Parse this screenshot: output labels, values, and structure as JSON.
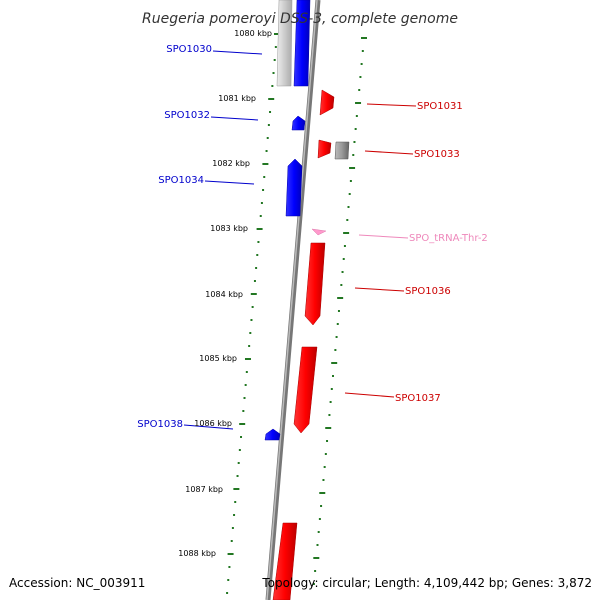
{
  "title": "Ruegeria pomeroyi DSS-3, complete genome",
  "footer": {
    "accession": "Accession: NC_003911",
    "topology": "Topology: circular; Length: 4,109,442 bp; Genes: 3,872"
  },
  "scale_labels": [
    "1080 kbp",
    "1081 kbp",
    "1082 kbp",
    "1083 kbp",
    "1084 kbp",
    "1085 kbp",
    "1086 kbp",
    "1087 kbp",
    "1088 kbp"
  ],
  "genes": [
    {
      "id": "SPO1030",
      "strand": "minus",
      "color": "#0000cc"
    },
    {
      "id": "SPO1031",
      "strand": "plus",
      "color": "#cc0000"
    },
    {
      "id": "SPO1032",
      "strand": "minus",
      "color": "#0000cc"
    },
    {
      "id": "SPO1033",
      "strand": "plus",
      "color": "#cc0000"
    },
    {
      "id": "SPO1034",
      "strand": "minus",
      "color": "#0000cc"
    },
    {
      "id": "SPO_tRNA-Thr-2",
      "strand": "plus",
      "color": "#ee88bb"
    },
    {
      "id": "SPO1036",
      "strand": "plus",
      "color": "#cc0000"
    },
    {
      "id": "SPO1037",
      "strand": "plus",
      "color": "#cc0000"
    },
    {
      "id": "SPO1038",
      "strand": "minus",
      "color": "#0000cc"
    }
  ],
  "colors": {
    "minus_strand": "#0000ff",
    "plus_strand": "#ff0000",
    "trna": "#ff99cc",
    "other": "#888888",
    "backbone": "#888888",
    "ruler": "#227722"
  }
}
